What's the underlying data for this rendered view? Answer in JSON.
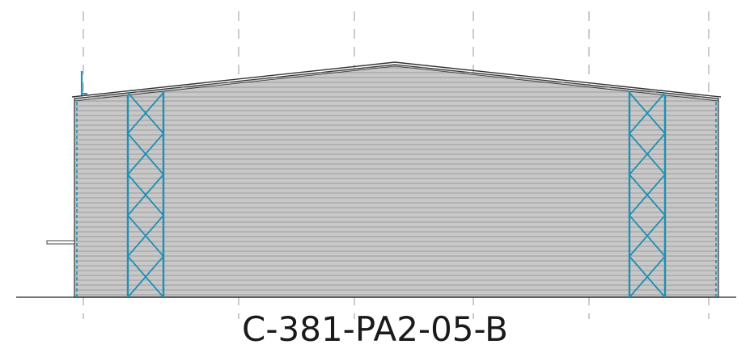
{
  "drawing": {
    "label": "C-381-PA2-05-B",
    "colors": {
      "cladding": "#c8c8c8",
      "cladding_line": "#8e8e8e",
      "bracing": "#1f8fb3",
      "outline": "#333333",
      "grid_line": "#9a9a9a",
      "ground": "#222222"
    }
  }
}
